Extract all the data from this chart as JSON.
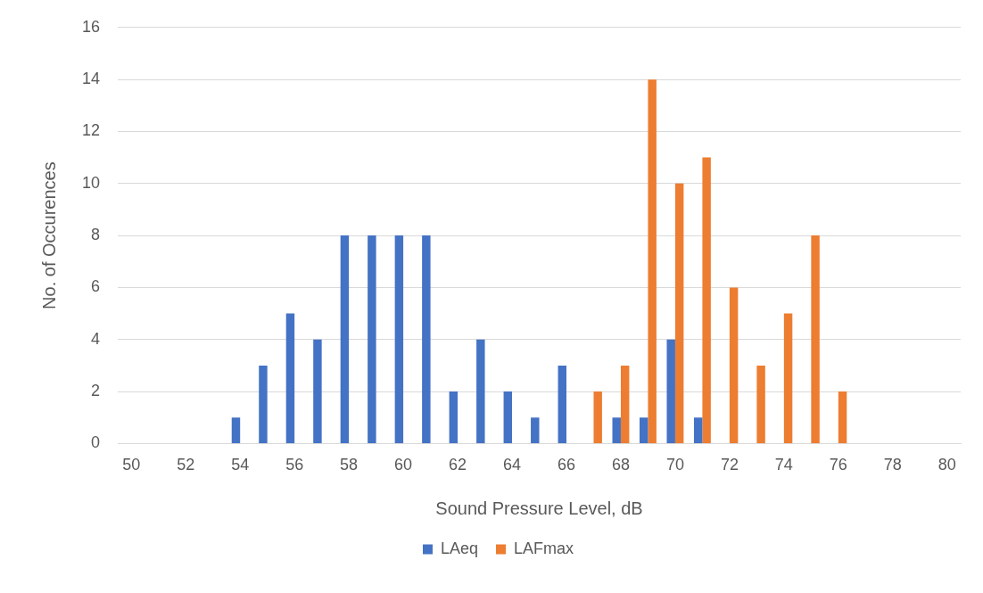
{
  "chart_data": {
    "type": "bar",
    "xlabel": "Sound Pressure Level, dB",
    "ylabel": "No. of Occurences",
    "categories": [
      "50",
      null,
      "52",
      null,
      "54",
      null,
      "56",
      null,
      "58",
      null,
      "60",
      null,
      "62",
      null,
      "64",
      null,
      "66",
      null,
      "68",
      null,
      "70",
      null,
      "72",
      null,
      "74",
      null,
      "76",
      null,
      "78",
      null,
      "80"
    ],
    "series": [
      {
        "name": "LAeq",
        "color": "#4472c4",
        "values": [
          0,
          0,
          0,
          0,
          1,
          3,
          5,
          4,
          8,
          8,
          8,
          8,
          2,
          4,
          2,
          1,
          3,
          0,
          1,
          1,
          4,
          1,
          0,
          0,
          0,
          0,
          0,
          0,
          0,
          0,
          0
        ]
      },
      {
        "name": "LAFmax",
        "color": "#ed7d31",
        "values": [
          0,
          0,
          0,
          0,
          0,
          0,
          0,
          0,
          0,
          0,
          0,
          0,
          0,
          0,
          0,
          0,
          0,
          2,
          3,
          14,
          10,
          11,
          6,
          3,
          5,
          8,
          2,
          0,
          0,
          0,
          0
        ]
      }
    ],
    "ylim": [
      0,
      16
    ],
    "yticks": [
      0,
      2,
      4,
      6,
      8,
      10,
      12,
      14,
      16
    ],
    "grid": "y",
    "legend": "bottom"
  }
}
